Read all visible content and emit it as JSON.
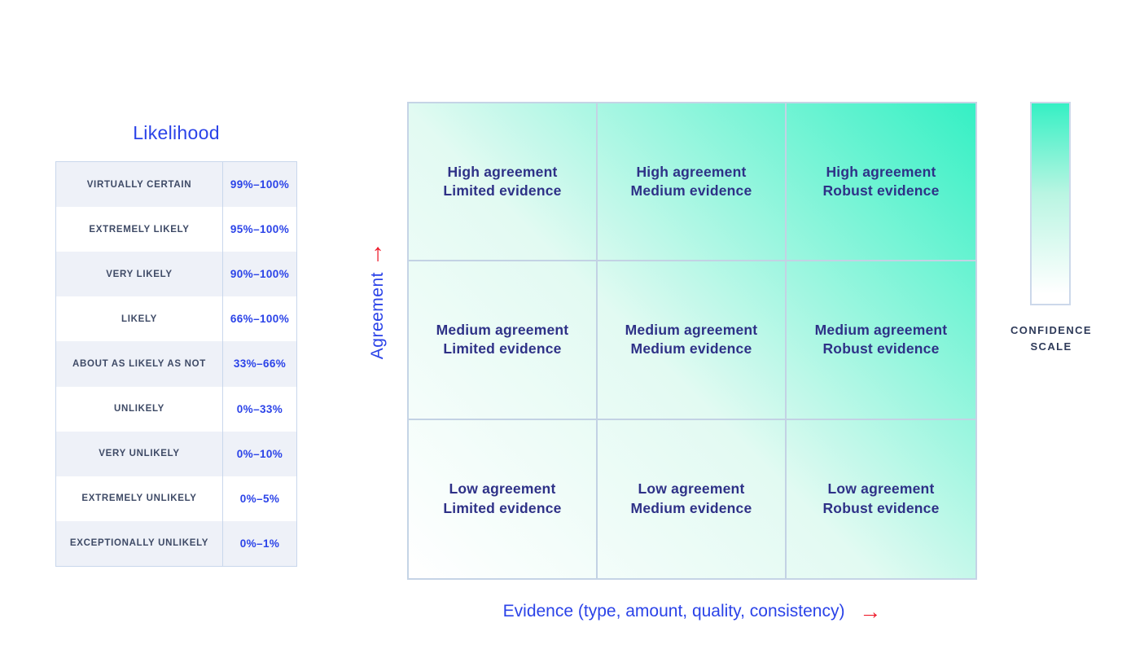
{
  "likelihood_table": {
    "title": "Likelihood",
    "columns": [
      "term",
      "probability_range"
    ],
    "rows": [
      {
        "term": "VIRTUALLY CERTAIN",
        "range": "99%–100%"
      },
      {
        "term": "EXTREMELY LIKELY",
        "range": "95%–100%"
      },
      {
        "term": "VERY LIKELY",
        "range": "90%–100%"
      },
      {
        "term": "LIKELY",
        "range": "66%–100%"
      },
      {
        "term": "ABOUT AS LIKELY AS NOT",
        "range": "33%–66%"
      },
      {
        "term": "UNLIKELY",
        "range": "0%–33%"
      },
      {
        "term": "VERY UNLIKELY",
        "range": "0%–10%"
      },
      {
        "term": "EXTREMELY UNLIKELY",
        "range": "0%–5%"
      },
      {
        "term": "EXCEPTIONALLY UNLIKELY",
        "range": "0%–1%"
      }
    ]
  },
  "matrix": {
    "y_axis_label": "Agreement",
    "x_axis_label": "Evidence (type, amount, quality, consistency)",
    "up_arrow": "↑",
    "right_arrow": "→",
    "cells": [
      {
        "line1": "High agreement",
        "line2": "Limited evidence"
      },
      {
        "line1": "High agreement",
        "line2": "Medium evidence"
      },
      {
        "line1": "High agreement",
        "line2": "Robust evidence"
      },
      {
        "line1": "Medium agreement",
        "line2": "Limited evidence"
      },
      {
        "line1": "Medium agreement",
        "line2": "Medium evidence"
      },
      {
        "line1": "Medium agreement",
        "line2": "Robust evidence"
      },
      {
        "line1": "Low agreement",
        "line2": "Limited evidence"
      },
      {
        "line1": "Low agreement",
        "line2": "Medium evidence"
      },
      {
        "line1": "Low agreement",
        "line2": "Robust evidence"
      }
    ]
  },
  "confidence_scale": {
    "label_line1": "CONFIDENCE",
    "label_line2": "SCALE"
  },
  "colors": {
    "accent_blue": "#2b43e8",
    "accent_red": "#ee1b2b",
    "cell_text_indigo": "#2e3187",
    "teal_max": "#35f0c4",
    "grid_line": "#c3d2e4",
    "table_alt_row": "#eef1f8",
    "table_term_text": "#3e4a66"
  }
}
